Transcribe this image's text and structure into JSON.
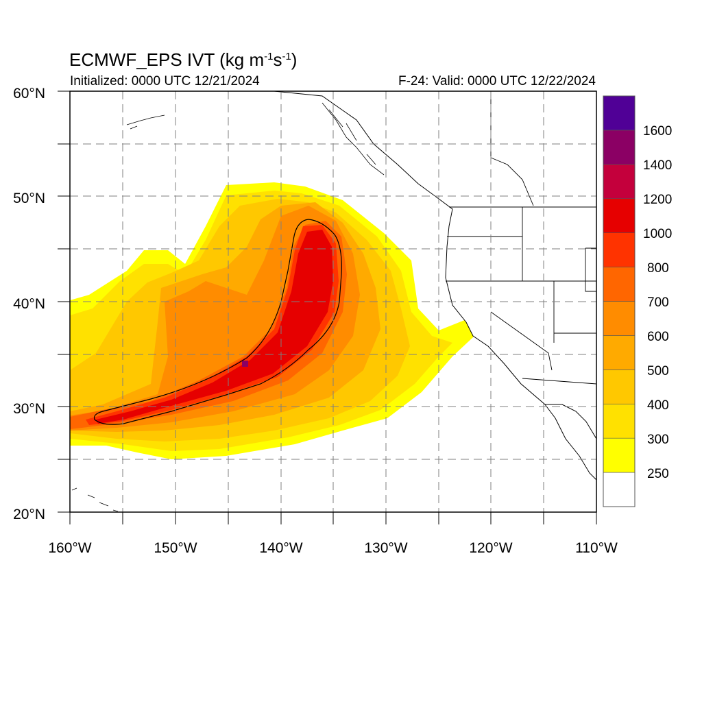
{
  "header": {
    "title_main": "ECMWF_EPS IVT (kg m",
    "title_exp1": "-1",
    "title_mid": "s",
    "title_exp2": "-1",
    "title_end": ")",
    "initialized": "Initialized: 0000 UTC 12/21/2024",
    "valid": "F-24: Valid: 0000 UTC 12/22/2024"
  },
  "map": {
    "lon_range": [
      -160,
      -110
    ],
    "lat_range": [
      20,
      60
    ],
    "lat_labels": [
      "20°N",
      "30°N",
      "40°N",
      "50°N",
      "60°N"
    ],
    "lon_labels": [
      "160°W",
      "150°W",
      "140°W",
      "130°W",
      "120°W",
      "110°W"
    ],
    "gridlines": "dashed",
    "ivt_core_contour": "1000"
  },
  "colorbar": {
    "labels": [
      "250",
      "300",
      "400",
      "500",
      "600",
      "700",
      "800",
      "1000",
      "1200",
      "1400",
      "1600"
    ],
    "colors": [
      "#ffffff",
      "#ffff00",
      "#ffe100",
      "#ffc800",
      "#ffaa00",
      "#ff8c00",
      "#ff6600",
      "#ff3300",
      "#e60000",
      "#c4003c",
      "#8b0064",
      "#500096"
    ]
  }
}
